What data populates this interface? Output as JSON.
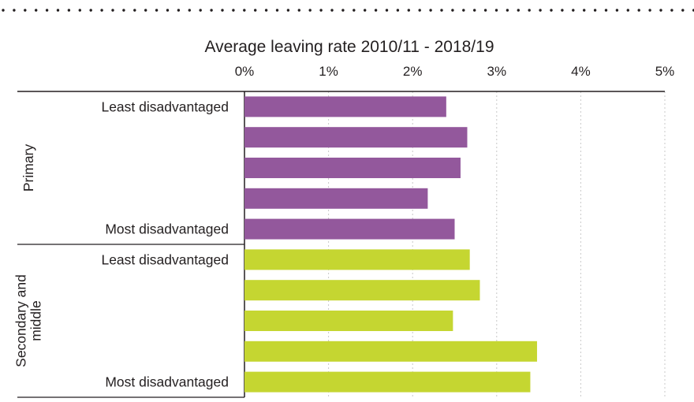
{
  "chart_data": {
    "type": "bar",
    "orientation": "horizontal",
    "title": "Average leaving rate 2010/11 - 2018/19",
    "xlim": [
      0,
      5
    ],
    "x_ticks": [
      0,
      1,
      2,
      3,
      4,
      5
    ],
    "x_tick_labels": [
      "0%",
      "1%",
      "2%",
      "3%",
      "4%",
      "5%"
    ],
    "groups": [
      {
        "name": "Primary",
        "color": "#93589c",
        "categories": [
          "Least disadvantaged",
          "",
          "",
          "",
          "Most disadvantaged"
        ],
        "values": [
          2.4,
          2.65,
          2.57,
          2.18,
          2.5
        ]
      },
      {
        "name": "Secondary and middle",
        "color": "#c5d631",
        "categories": [
          "Least disadvantaged",
          "",
          "",
          "",
          "Most disadvantaged"
        ],
        "values": [
          2.68,
          2.8,
          2.48,
          3.48,
          3.4
        ]
      }
    ],
    "grid": true,
    "legend": "none"
  }
}
